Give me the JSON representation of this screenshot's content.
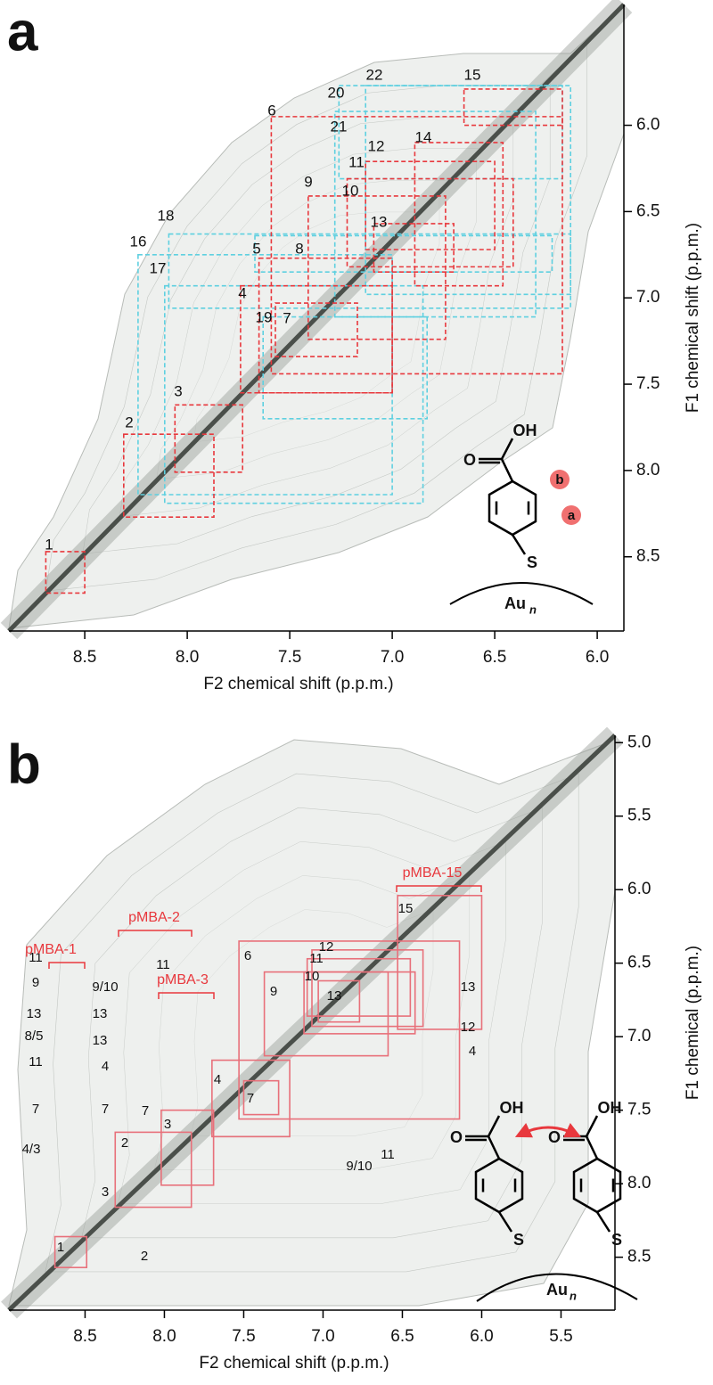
{
  "chart_data": [
    {
      "type": "nmr",
      "panel": "a",
      "xlabel": "F2 chemical shift (p.p.m.)",
      "ylabel": "F1 chemical shift (p.p.m.)",
      "xlim": [
        8.87,
        5.87
      ],
      "ylim": [
        5.3,
        8.93
      ],
      "xticks": [
        8.5,
        {
          "value": 8,
          "label": "8.0"
        },
        7.5,
        {
          "value": 7,
          "label": "7.0"
        },
        6.5,
        {
          "value": 6,
          "label": "6.0"
        }
      ],
      "yticks": [
        {
          "value": 6,
          "label": "6.0"
        },
        6.5,
        {
          "value": 7,
          "label": "7.0"
        },
        7.5,
        {
          "value": 8,
          "label": "8.0"
        },
        8.5
      ],
      "box_groups": [
        {
          "color": "#5fd0e0",
          "dashed": true,
          "boxes": [
            {
              "x": [
                8.24,
                7.0
              ],
              "y": [
                6.75,
                8.14
              ]
            },
            {
              "x": [
                8.11,
                6.85
              ],
              "y": [
                6.93,
                8.19
              ]
            },
            {
              "x": [
                8.09,
                6.13
              ],
              "y": [
                6.63,
                7.06
              ]
            },
            {
              "x": [
                7.26,
                6.17
              ],
              "y": [
                5.77,
                6.31
              ]
            },
            {
              "x": [
                7.28,
                6.3
              ],
              "y": [
                5.92,
                7.11
              ]
            },
            {
              "x": [
                7.13,
                6.13
              ],
              "y": [
                5.77,
                6.98
              ]
            },
            {
              "x": [
                7.63,
                6.83
              ],
              "y": [
                7.11,
                7.7
              ]
            },
            {
              "x": [
                7.67,
                6.22
              ],
              "y": [
                6.64,
                6.85
              ]
            }
          ]
        },
        {
          "color": "#e8383d",
          "dashed": true,
          "boxes": [
            {
              "x": [
                8.69,
                8.5
              ],
              "y": [
                8.47,
                8.71
              ]
            },
            {
              "x": [
                8.31,
                7.87
              ],
              "y": [
                7.79,
                8.27
              ]
            },
            {
              "x": [
                8.06,
                7.73
              ],
              "y": [
                7.62,
                8.01
              ]
            },
            {
              "x": [
                7.74,
                7.0
              ],
              "y": [
                6.93,
                7.55
              ]
            },
            {
              "x": [
                7.59,
                6.17
              ],
              "y": [
                5.95,
                7.44
              ]
            },
            {
              "x": [
                7.57,
                7.17
              ],
              "y": [
                7.03,
                7.34
              ]
            },
            {
              "x": [
                7.65,
                7.0
              ],
              "y": [
                6.77,
                7.55
              ]
            },
            {
              "x": [
                7.41,
                6.74
              ],
              "y": [
                6.41,
                7.24
              ]
            },
            {
              "x": [
                7.22,
                6.41
              ],
              "y": [
                6.31,
                6.82
              ]
            },
            {
              "x": [
                7.13,
                6.5
              ],
              "y": [
                6.21,
                6.72
              ]
            },
            {
              "x": [
                7.09,
                6.7
              ],
              "y": [
                6.57,
                6.85
              ]
            },
            {
              "x": [
                6.89,
                6.46
              ],
              "y": [
                6.1,
                6.93
              ]
            },
            {
              "x": [
                6.65,
                6.17
              ],
              "y": [
                5.79,
                6.0
              ]
            }
          ]
        }
      ],
      "labels": [
        "1",
        "2",
        "3",
        "4",
        "5",
        "6",
        "7",
        "8",
        "9",
        "10",
        "11",
        "12",
        "13",
        "14",
        "15",
        "16",
        "17",
        "18",
        "19",
        "20",
        "21",
        "22"
      ],
      "structure_labels": [
        "OH",
        "O",
        "b",
        "a",
        "S",
        "Au",
        "n"
      ]
    },
    {
      "type": "nmr",
      "panel": "b",
      "xlabel": "F2 chemical shift (p.p.m.)",
      "ylabel": "F1 chemical (p.p.m.)",
      "xlim": [
        8.98,
        5.16
      ],
      "ylim": [
        4.95,
        8.86
      ],
      "xticks": [
        8.5,
        {
          "value": 8,
          "label": "8.0"
        },
        7.5,
        {
          "value": 7,
          "label": "7.0"
        },
        6.5,
        {
          "value": 6,
          "label": "6.0"
        },
        5.5
      ],
      "yticks": [
        {
          "value": 5,
          "label": "5.0"
        },
        5.5,
        {
          "value": 6,
          "label": "6.0"
        },
        6.5,
        {
          "value": 7,
          "label": "7.0"
        },
        7.5,
        {
          "value": 8,
          "label": "8.0"
        },
        8.5
      ],
      "box_groups": [
        {
          "color": "#e8707a",
          "dashed": false,
          "boxes": [
            {
              "x": [
                8.69,
                8.49
              ],
              "y": [
                8.36,
                8.57
              ]
            },
            {
              "x": [
                8.31,
                7.83
              ],
              "y": [
                7.65,
                8.16
              ]
            },
            {
              "x": [
                8.02,
                7.69
              ],
              "y": [
                7.5,
                8.01
              ]
            },
            {
              "x": [
                7.7,
                7.21
              ],
              "y": [
                7.16,
                7.68
              ]
            },
            {
              "x": [
                7.5,
                7.28
              ],
              "y": [
                7.3,
                7.53
              ]
            },
            {
              "x": [
                7.53,
                6.14
              ],
              "y": [
                6.35,
                7.56
              ]
            },
            {
              "x": [
                7.37,
                6.59
              ],
              "y": [
                6.56,
                7.13
              ]
            },
            {
              "x": [
                7.12,
                6.42
              ],
              "y": [
                6.56,
                6.98
              ]
            },
            {
              "x": [
                7.1,
                6.45
              ],
              "y": [
                6.47,
                6.86
              ]
            },
            {
              "x": [
                7.07,
                6.37
              ],
              "y": [
                6.41,
                6.93
              ]
            },
            {
              "x": [
                7.03,
                6.77
              ],
              "y": [
                6.62,
                6.9
              ]
            },
            {
              "x": [
                6.53,
                6.0
              ],
              "y": [
                6.04,
                6.95
              ]
            }
          ]
        }
      ],
      "group_labels": [
        "pMBA-1",
        "pMBA-2",
        "pMBA-3",
        "pMBA-15"
      ],
      "labels": [
        "11",
        "9",
        "13",
        "8/5",
        "11",
        "7",
        "4/3",
        "13",
        "13",
        "4",
        "7",
        "3",
        "2",
        "2",
        "1",
        "9/10",
        "11",
        "7",
        "3",
        "4",
        "7",
        "6",
        "9",
        "10",
        "11",
        "12",
        "13",
        "15",
        "13",
        "12",
        "4",
        "9/10",
        "11"
      ],
      "structure_labels": [
        "OH",
        "O",
        "OH",
        "O",
        "S",
        "S",
        "Au",
        "n"
      ]
    }
  ]
}
